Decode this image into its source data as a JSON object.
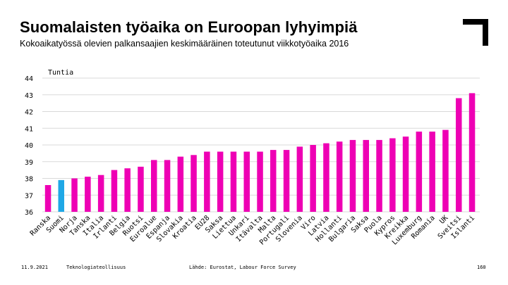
{
  "header": {
    "title": "Suomalaisten työaika on Euroopan lyhyimpiä",
    "subtitle": "Kokoaikatyössä olevien palkansaajien keskimääräinen toteutunut viikkotyöaika 2016"
  },
  "footer": {
    "date": "11.9.2021",
    "organization": "Teknologiateollisuus",
    "source": "Lähde: Eurostat, Labour Force Survey",
    "page_number": "160"
  },
  "colors": {
    "bar": "#ee00b4",
    "highlight": "#1fa8e6",
    "grid": "#d9d9d9",
    "logo": "#000000"
  },
  "chart_data": {
    "type": "bar",
    "ylabel": "Tuntia",
    "ylim": [
      36,
      44
    ],
    "yticks": [
      36,
      37,
      38,
      39,
      40,
      41,
      42,
      43,
      44
    ],
    "highlight_category": "Suomi",
    "categories": [
      "Ranska",
      "Suomi",
      "Norja",
      "Tanska",
      "Italia",
      "Irlanti",
      "Belgia",
      "Ruotsi",
      "Euroalue",
      "Espanja",
      "Slovakia",
      "Kroatia",
      "EU28",
      "Saksa",
      "Liettua",
      "Unkari",
      "Itävalta",
      "Malta",
      "Portugali",
      "Slovenia",
      "Viro",
      "Latvia",
      "Hollanti",
      "Bulgaria",
      "Saksa",
      "Puola",
      "Kypros",
      "Kreikka",
      "Luxemburg",
      "Romania",
      "UK",
      "Sveitsi",
      "Islanti"
    ],
    "values": [
      37.6,
      37.9,
      38.0,
      38.1,
      38.2,
      38.5,
      38.6,
      38.7,
      39.1,
      39.1,
      39.3,
      39.4,
      39.6,
      39.6,
      39.6,
      39.6,
      39.6,
      39.7,
      39.7,
      39.9,
      40.0,
      40.1,
      40.2,
      40.3,
      40.3,
      40.3,
      40.4,
      40.5,
      40.8,
      40.8,
      40.9,
      42.8,
      43.1
    ]
  }
}
